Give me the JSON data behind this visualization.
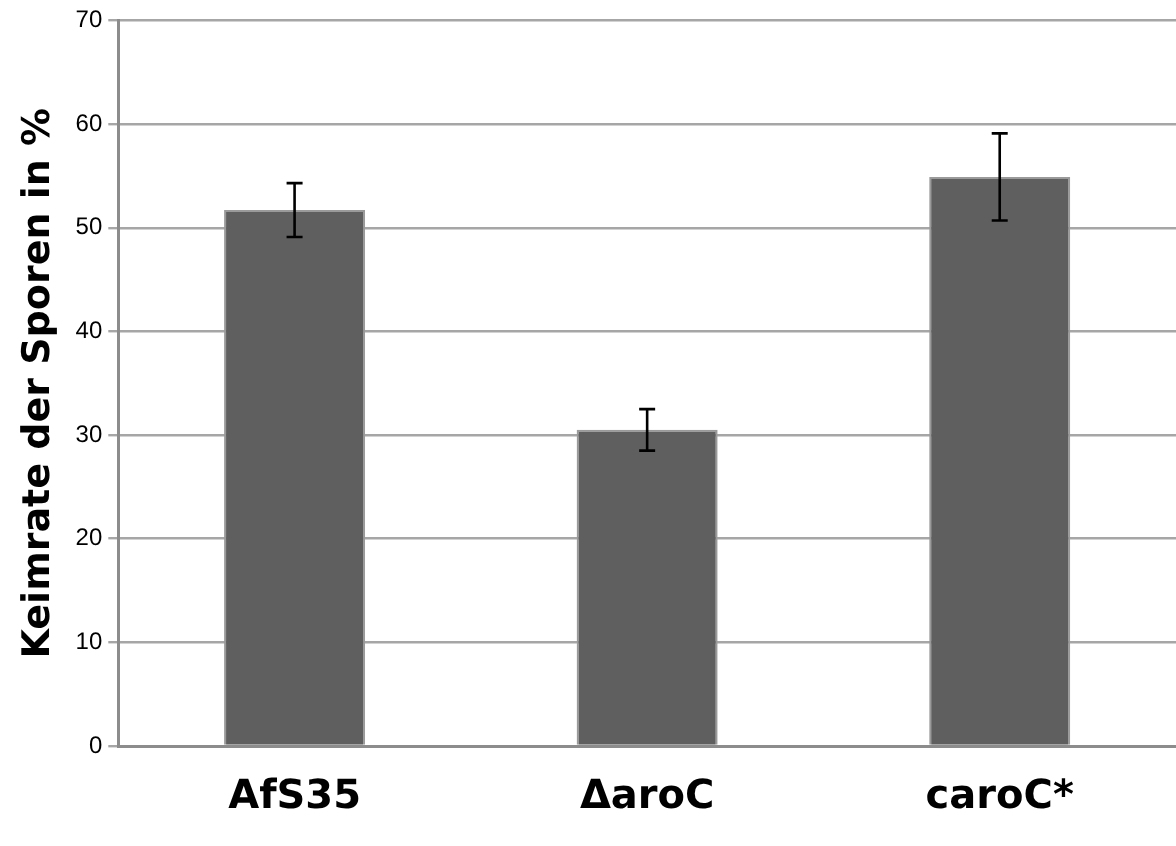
{
  "chart_data": {
    "type": "bar",
    "ylabel": "Keimrate der Sporen in %",
    "categories": [
      "AfS35",
      "ΔaroC",
      "caroC*"
    ],
    "values": [
      51.7,
      30.5,
      54.9
    ],
    "errors": [
      2.6,
      2,
      4.2
    ],
    "color": "#5f5f5f",
    "ylim": [
      0,
      70
    ],
    "yticks": [
      0,
      10,
      20,
      30,
      40,
      50,
      60,
      70
    ],
    "grid": "y"
  }
}
